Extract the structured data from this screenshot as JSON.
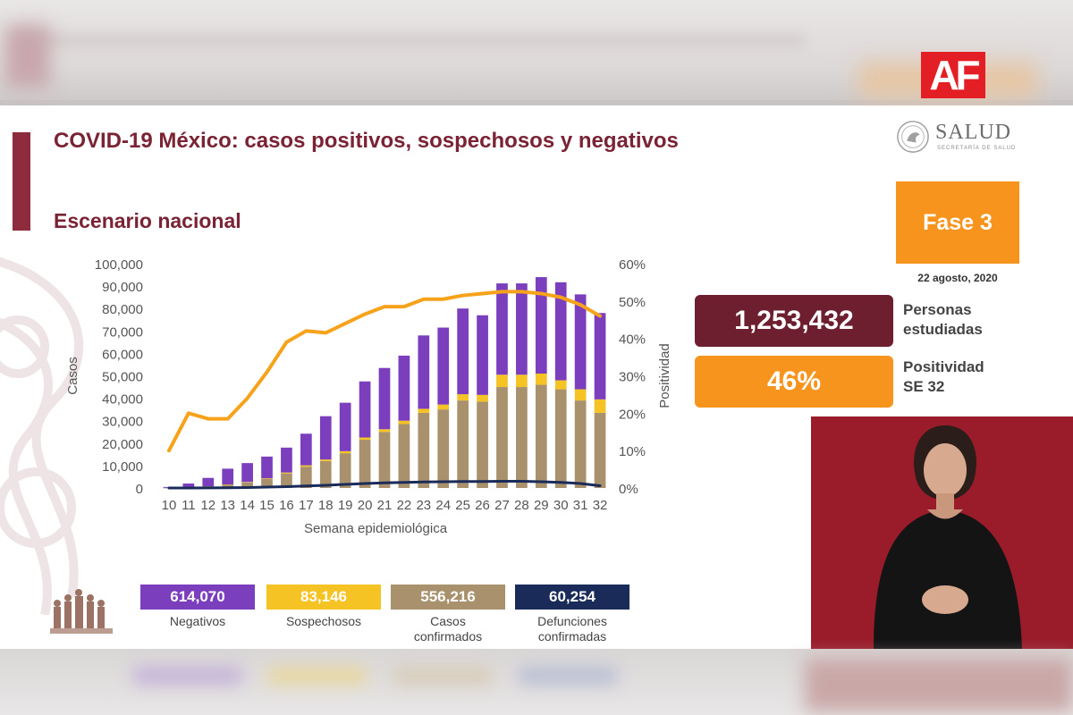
{
  "overlay": {
    "logo_text": "AF"
  },
  "slide": {
    "title": "COVID-19 México: casos positivos, sospechosos y negativos",
    "subtitle": "Escenario nacional",
    "brand": {
      "word": "SALUD",
      "sub": "SECRETARÍA DE SALUD"
    },
    "phase": "Fase 3",
    "date": "22 agosto, 2020",
    "studied": {
      "value": "1,253,432",
      "label_line1": "Personas",
      "label_line2": "estudiadas"
    },
    "positivity": {
      "value": "46%",
      "label_line1": "Positividad",
      "label_line2": "SE 32"
    }
  },
  "summary": [
    {
      "value": "614,070",
      "label_line1": "Negativos",
      "label_line2": "",
      "color": "#7b3fbe"
    },
    {
      "value": "83,146",
      "label_line1": "Sospechosos",
      "label_line2": "",
      "color": "#f6c324"
    },
    {
      "value": "556,216",
      "label_line1": "Casos",
      "label_line2": "confirmados",
      "color": "#a8916c"
    },
    {
      "value": "60,254",
      "label_line1": "Defunciones",
      "label_line2": "confirmadas",
      "color": "#1a2b5a"
    }
  ],
  "chart_data": {
    "type": "bar",
    "xlabel": "Semana epidemiológica",
    "ylabel": "Casos",
    "y2label": "Positividad",
    "ylim": [
      0,
      100000
    ],
    "y2lim": [
      0,
      60
    ],
    "yticks": [
      "0",
      "10,000",
      "20,000",
      "30,000",
      "40,000",
      "50,000",
      "60,000",
      "70,000",
      "80,000",
      "90,000",
      "100,000"
    ],
    "y2ticks": [
      "0%",
      "10%",
      "20%",
      "30%",
      "40%",
      "50%",
      "60%"
    ],
    "categories": [
      "10",
      "11",
      "12",
      "13",
      "14",
      "15",
      "16",
      "17",
      "18",
      "19",
      "20",
      "21",
      "22",
      "23",
      "24",
      "25",
      "26",
      "27",
      "28",
      "29",
      "30",
      "31",
      "32"
    ],
    "stack": [
      {
        "name": "Casos confirmados",
        "color": "#a8916c",
        "values": [
          50,
          300,
          800,
          1500,
          2500,
          4000,
          6500,
          9500,
          12000,
          15500,
          21500,
          25000,
          28500,
          33500,
          35000,
          39000,
          38500,
          45000,
          45000,
          46000,
          44000,
          39000,
          33500
        ]
      },
      {
        "name": "Sospechosos",
        "color": "#f6c324",
        "values": [
          0,
          0,
          0,
          100,
          200,
          300,
          400,
          600,
          700,
          900,
          1000,
          1200,
          1500,
          1800,
          2200,
          2800,
          3000,
          5500,
          5500,
          5000,
          4000,
          5000,
          6000
        ]
      },
      {
        "name": "Negativos",
        "color": "#7b3fbe",
        "values": [
          400,
          1700,
          3700,
          7000,
          8400,
          9700,
          11100,
          14100,
          19300,
          21600,
          25000,
          27300,
          29000,
          32700,
          34300,
          38200,
          35500,
          40700,
          40700,
          43000,
          43700,
          42300,
          38500
        ]
      }
    ],
    "lines": [
      {
        "name": "Positividad",
        "axis": "right",
        "color": "#f7a21b",
        "values": [
          10,
          20,
          18.5,
          18.5,
          24,
          31,
          39,
          42,
          41.5,
          44,
          46.5,
          48.5,
          48.5,
          50.5,
          50.5,
          51.5,
          52,
          52.5,
          52.5,
          52,
          51,
          49,
          46
        ]
      },
      {
        "name": "Defunciones",
        "axis": "left",
        "color": "#1a2b5a",
        "values": [
          0,
          0,
          50,
          100,
          200,
          400,
          600,
          900,
          1200,
          1600,
          2000,
          2300,
          2500,
          2700,
          2800,
          2900,
          2900,
          3000,
          3000,
          2800,
          2500,
          2000,
          1000
        ]
      }
    ]
  }
}
